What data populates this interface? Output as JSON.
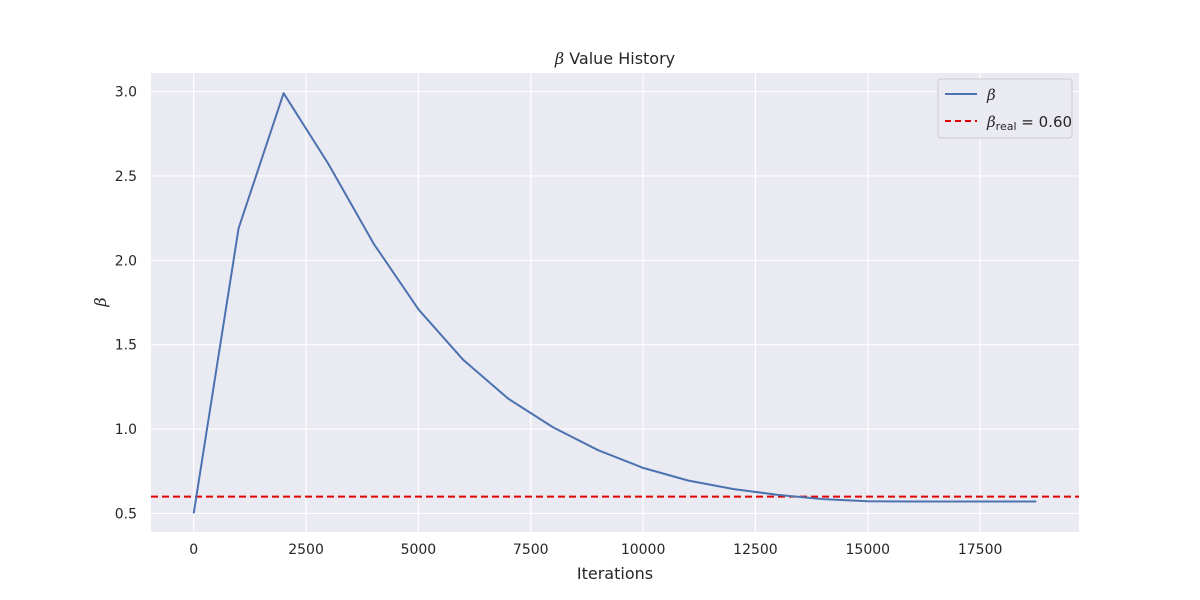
{
  "chart_data": {
    "type": "line",
    "title": {
      "symbol": "β",
      "text": " Value History"
    },
    "xlabel": "Iterations",
    "ylabel": "β",
    "xlim": [
      -950,
      19700
    ],
    "ylim": [
      0.39,
      3.11
    ],
    "xticks": [
      0,
      2500,
      5000,
      7500,
      10000,
      12500,
      15000,
      17500
    ],
    "yticks": [
      0.5,
      1.0,
      1.5,
      2.0,
      2.5,
      3.0
    ],
    "xtick_labels": [
      "0",
      "2500",
      "5000",
      "7500",
      "10000",
      "12500",
      "15000",
      "17500"
    ],
    "ytick_labels": [
      "0.5",
      "1.0",
      "1.5",
      "2.0",
      "2.5",
      "3.0"
    ],
    "grid": true,
    "legend_position": "top-right",
    "series": [
      {
        "name": "β",
        "style": "solid",
        "color": "#4c72b0",
        "x": [
          0,
          1000,
          2000,
          3000,
          4000,
          5000,
          6000,
          7000,
          8000,
          9000,
          10000,
          11000,
          12000,
          13000,
          14000,
          15000,
          16000,
          17000,
          18000,
          18750
        ],
        "y": [
          0.5,
          2.19,
          2.99,
          2.57,
          2.1,
          1.71,
          1.41,
          1.18,
          1.01,
          0.875,
          0.77,
          0.695,
          0.645,
          0.61,
          0.585,
          0.572,
          0.571,
          0.571,
          0.571,
          0.571
        ]
      }
    ],
    "reference_lines": [
      {
        "name_symbol": "β",
        "name_subscript": "real",
        "name_suffix": " = 0.60",
        "y": 0.6,
        "style": "dashed",
        "color": "#e00000"
      }
    ],
    "colors": {
      "background": "#eaeaf2",
      "grid": "#ffffff"
    }
  }
}
